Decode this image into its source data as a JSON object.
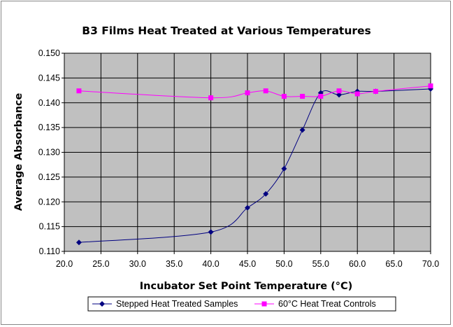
{
  "chart_data": {
    "type": "line",
    "title": "B3 Films Heat Treated at Various Temperatures",
    "xlabel": "Incubator Set Point Temperature (°C)",
    "ylabel": "Average Absorbance",
    "xlim": [
      20.0,
      70.0
    ],
    "ylim": [
      0.11,
      0.15
    ],
    "x_ticks": [
      "20.0",
      "25.0",
      "30.0",
      "35.0",
      "40.0",
      "45.0",
      "50.0",
      "55.0",
      "60.0",
      "65.0",
      "70.0"
    ],
    "y_ticks": [
      "0.110",
      "0.115",
      "0.120",
      "0.125",
      "0.130",
      "0.135",
      "0.140",
      "0.145",
      "0.150"
    ],
    "grid": true,
    "plot_background": "#c0c0c0",
    "legend_position": "bottom",
    "series": [
      {
        "name": "Stepped Heat Treated Samples",
        "color": "#000080",
        "marker": "diamond",
        "x": [
          22,
          40,
          45,
          47.5,
          50,
          52.5,
          55,
          57.5,
          60,
          62.5,
          70
        ],
        "y": [
          0.1118,
          0.1139,
          0.1188,
          0.1216,
          0.1267,
          0.1345,
          0.142,
          0.1416,
          0.1423,
          0.1423,
          0.1428
        ]
      },
      {
        "name": "60°C Heat Treat Controls",
        "color": "#ff00ff",
        "marker": "square",
        "x": [
          22,
          40,
          45,
          47.5,
          50,
          52.5,
          55,
          57.5,
          60,
          62.5,
          70
        ],
        "y": [
          0.1424,
          0.141,
          0.142,
          0.1424,
          0.1413,
          0.1413,
          0.1413,
          0.1424,
          0.1418,
          0.1423,
          0.1434
        ]
      }
    ]
  }
}
